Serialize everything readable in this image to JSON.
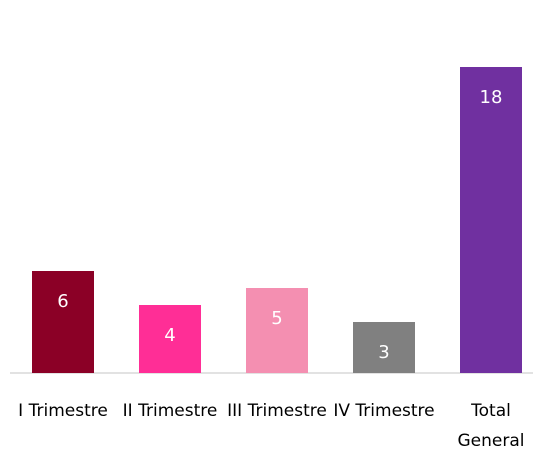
{
  "chart_data": {
    "type": "bar",
    "categories": [
      "I Trimestre",
      "II Trimestre",
      "III Trimestre",
      "IV Trimestre",
      "Total General"
    ],
    "values": [
      6,
      4,
      5,
      3,
      18
    ],
    "colors": [
      "#8b0026",
      "#ff2e96",
      "#f48fb1",
      "#808080",
      "#7030a0"
    ]
  }
}
